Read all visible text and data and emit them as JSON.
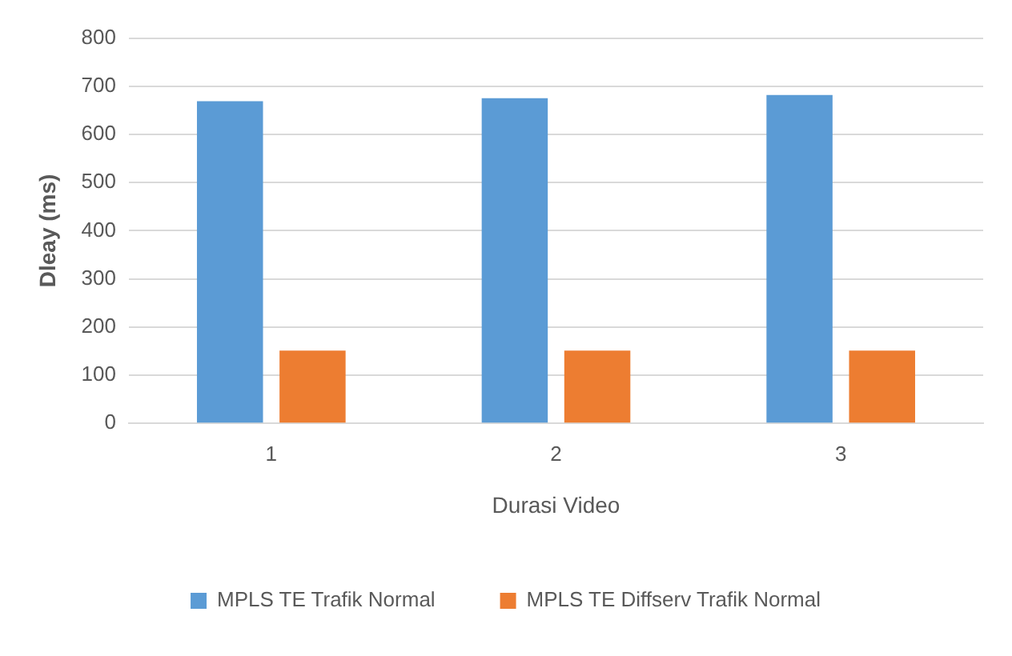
{
  "chart_data": {
    "type": "bar",
    "xlabel": "Durasi Video",
    "ylabel": "Dleay (ms)",
    "categories": [
      "1",
      "2",
      "3"
    ],
    "series": [
      {
        "name": "MPLS TE Trafik Normal",
        "color": "#5b9bd5",
        "values": [
          669,
          675,
          682
        ]
      },
      {
        "name": "MPLS TE Diffserv Trafik Normal",
        "color": "#ed7d31",
        "values": [
          151,
          151,
          151
        ]
      }
    ],
    "ylim": [
      0,
      800
    ],
    "yticks": [
      0,
      100,
      200,
      300,
      400,
      500,
      600,
      700,
      800
    ],
    "grid": "y",
    "legend": "bottom"
  }
}
